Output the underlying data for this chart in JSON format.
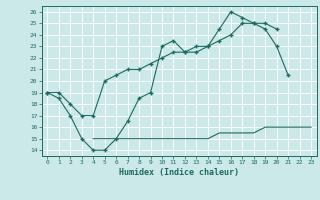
{
  "xlabel": "Humidex (Indice chaleur)",
  "ylabel": "",
  "bg_color": "#cce9e9",
  "line_color": "#1a6b60",
  "grid_color": "#ffffff",
  "xlim": [
    -0.5,
    23.5
  ],
  "ylim": [
    13.5,
    26.5
  ],
  "xticks": [
    0,
    1,
    2,
    3,
    4,
    5,
    6,
    7,
    8,
    9,
    10,
    11,
    12,
    13,
    14,
    15,
    16,
    17,
    18,
    19,
    20,
    21,
    22,
    23
  ],
  "yticks": [
    14,
    15,
    16,
    17,
    18,
    19,
    20,
    21,
    22,
    23,
    24,
    25,
    26
  ],
  "series1": [
    19.0,
    18.5,
    17.0,
    15.0,
    14.0,
    14.0,
    15.0,
    16.5,
    18.5,
    19.0,
    23.0,
    23.5,
    22.5,
    22.5,
    23.0,
    24.5,
    26.0,
    25.5,
    25.0,
    24.5,
    23.0,
    20.5,
    null,
    null
  ],
  "series2": [
    19.0,
    19.0,
    18.0,
    17.0,
    17.0,
    20.0,
    20.5,
    21.0,
    21.0,
    21.5,
    22.0,
    22.5,
    22.5,
    23.0,
    23.0,
    23.5,
    24.0,
    25.0,
    25.0,
    25.0,
    24.5,
    null,
    null,
    null
  ],
  "series3": [
    null,
    null,
    null,
    null,
    15.0,
    15.0,
    15.0,
    15.0,
    15.0,
    15.0,
    15.0,
    15.0,
    15.0,
    15.0,
    15.0,
    15.5,
    15.5,
    15.5,
    15.5,
    16.0,
    16.0,
    16.0,
    16.0,
    16.0
  ]
}
